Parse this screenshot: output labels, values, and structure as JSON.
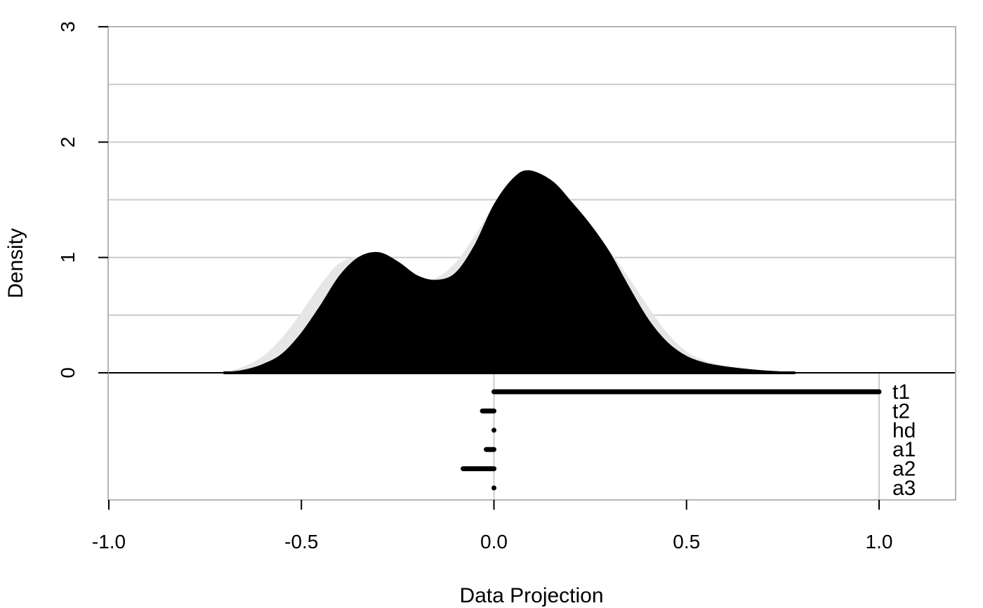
{
  "chart_data": {
    "type": "area",
    "xlabel": "Data Projection",
    "ylabel": "Density",
    "xlim": [
      -1.0,
      1.2
    ],
    "ylim": [
      -1.1,
      3.0
    ],
    "x_ticks": [
      {
        "value": -1.0,
        "label": "-1.0"
      },
      {
        "value": -0.5,
        "label": "-0.5"
      },
      {
        "value": 0.0,
        "label": "0.0"
      },
      {
        "value": 0.5,
        "label": "0.5"
      },
      {
        "value": 1.0,
        "label": "1.0"
      }
    ],
    "y_ticks": [
      {
        "value": 0,
        "label": "0"
      },
      {
        "value": 1,
        "label": "1"
      },
      {
        "value": 2,
        "label": "2"
      },
      {
        "value": 3,
        "label": "3"
      }
    ],
    "gridlines_y": [
      0.5,
      1.0,
      1.5,
      2.0,
      2.5
    ],
    "reference_x": [
      0.0,
      1.0
    ],
    "grid": true,
    "series": [
      {
        "role": "background density",
        "color": "#e6e6e6",
        "x": [
          -0.76,
          -0.7,
          -0.65,
          -0.6,
          -0.55,
          -0.5,
          -0.45,
          -0.4,
          -0.35,
          -0.3,
          -0.25,
          -0.2,
          -0.15,
          -0.1,
          -0.05,
          0.0,
          0.05,
          0.1,
          0.15,
          0.2,
          0.25,
          0.3,
          0.35,
          0.4,
          0.45,
          0.5,
          0.55,
          0.6,
          0.65,
          0.7,
          0.75,
          0.8,
          0.85
        ],
        "y": [
          0.0,
          0.01,
          0.05,
          0.14,
          0.3,
          0.52,
          0.76,
          0.95,
          1.0,
          0.95,
          0.86,
          0.8,
          0.82,
          0.95,
          1.18,
          1.45,
          1.66,
          1.72,
          1.6,
          1.43,
          1.26,
          1.06,
          0.82,
          0.57,
          0.34,
          0.18,
          0.1,
          0.06,
          0.04,
          0.02,
          0.01,
          0.005,
          0.0
        ]
      },
      {
        "role": "density",
        "color": "#000000",
        "x": [
          -0.7,
          -0.65,
          -0.6,
          -0.55,
          -0.5,
          -0.45,
          -0.4,
          -0.35,
          -0.3,
          -0.25,
          -0.2,
          -0.15,
          -0.1,
          -0.05,
          0.0,
          0.05,
          0.09,
          0.15,
          0.2,
          0.25,
          0.3,
          0.35,
          0.4,
          0.45,
          0.5,
          0.55,
          0.6,
          0.65,
          0.7,
          0.78
        ],
        "y": [
          0.0,
          0.02,
          0.07,
          0.16,
          0.34,
          0.58,
          0.84,
          1.0,
          1.04,
          0.96,
          0.84,
          0.8,
          0.86,
          1.1,
          1.45,
          1.68,
          1.75,
          1.66,
          1.48,
          1.28,
          1.04,
          0.74,
          0.46,
          0.26,
          0.14,
          0.08,
          0.05,
          0.03,
          0.015,
          0.0
        ]
      }
    ],
    "intervals": [
      {
        "label": "t1",
        "start": 0.0,
        "end": 1.0
      },
      {
        "label": "t2",
        "start": -0.03,
        "end": 0.0
      },
      {
        "label": "hd",
        "start": 0.0,
        "end": 0.0
      },
      {
        "label": "a1",
        "start": -0.02,
        "end": 0.0
      },
      {
        "label": "a2",
        "start": -0.08,
        "end": 0.0
      },
      {
        "label": "a3",
        "start": 0.0,
        "end": 0.0
      }
    ]
  }
}
